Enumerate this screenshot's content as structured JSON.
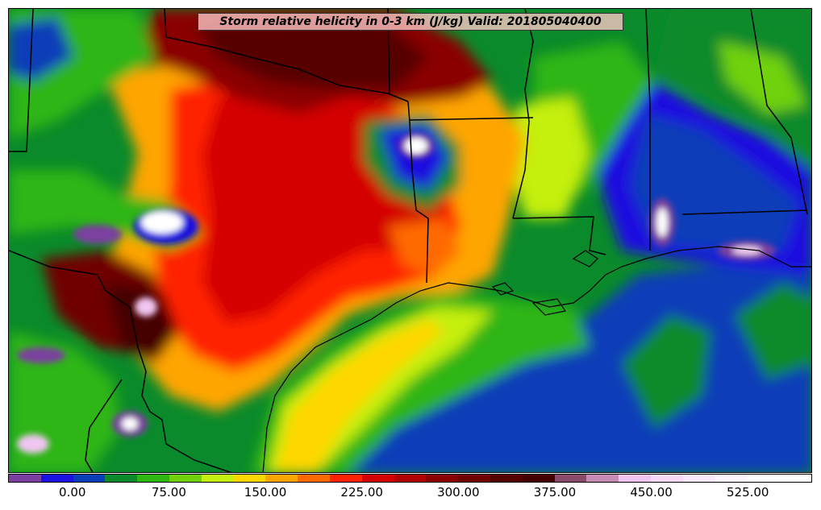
{
  "map": {
    "title": "Storm relative helicity in 0-3 km (J/kg) Valid: 201805040400",
    "field": "storm_relative_helicity_0_3km",
    "unit": "J/kg",
    "valid_time": "201805040400",
    "colorbar": {
      "min": -50,
      "max": 575,
      "step": 25,
      "colors": [
        "#7b3fa0",
        "#1a10e0",
        "#0a3db8",
        "#0a8a2a",
        "#2db512",
        "#6fd10c",
        "#c5ef10",
        "#ffd700",
        "#ffa500",
        "#ff6a00",
        "#ff2200",
        "#d40000",
        "#b00000",
        "#8a0000",
        "#700000",
        "#560000",
        "#440000",
        "#8a4a6a",
        "#c58bb5",
        "#f0c6f0",
        "#f8daf8",
        "#fce8fc",
        "#fff5ff",
        "#ffffff",
        "#ffffff"
      ],
      "tick_labels": [
        "0.00",
        "75.00",
        "150.00",
        "225.00",
        "300.00",
        "375.00",
        "450.00",
        "525.00"
      ],
      "tick_values": [
        0,
        75,
        150,
        225,
        300,
        375,
        450,
        525
      ]
    },
    "region": "Texas and Gulf Coast",
    "colors": {
      "background": "#ffffff",
      "boundary": "#000000",
      "title_bg": "#ffc8c8"
    }
  }
}
